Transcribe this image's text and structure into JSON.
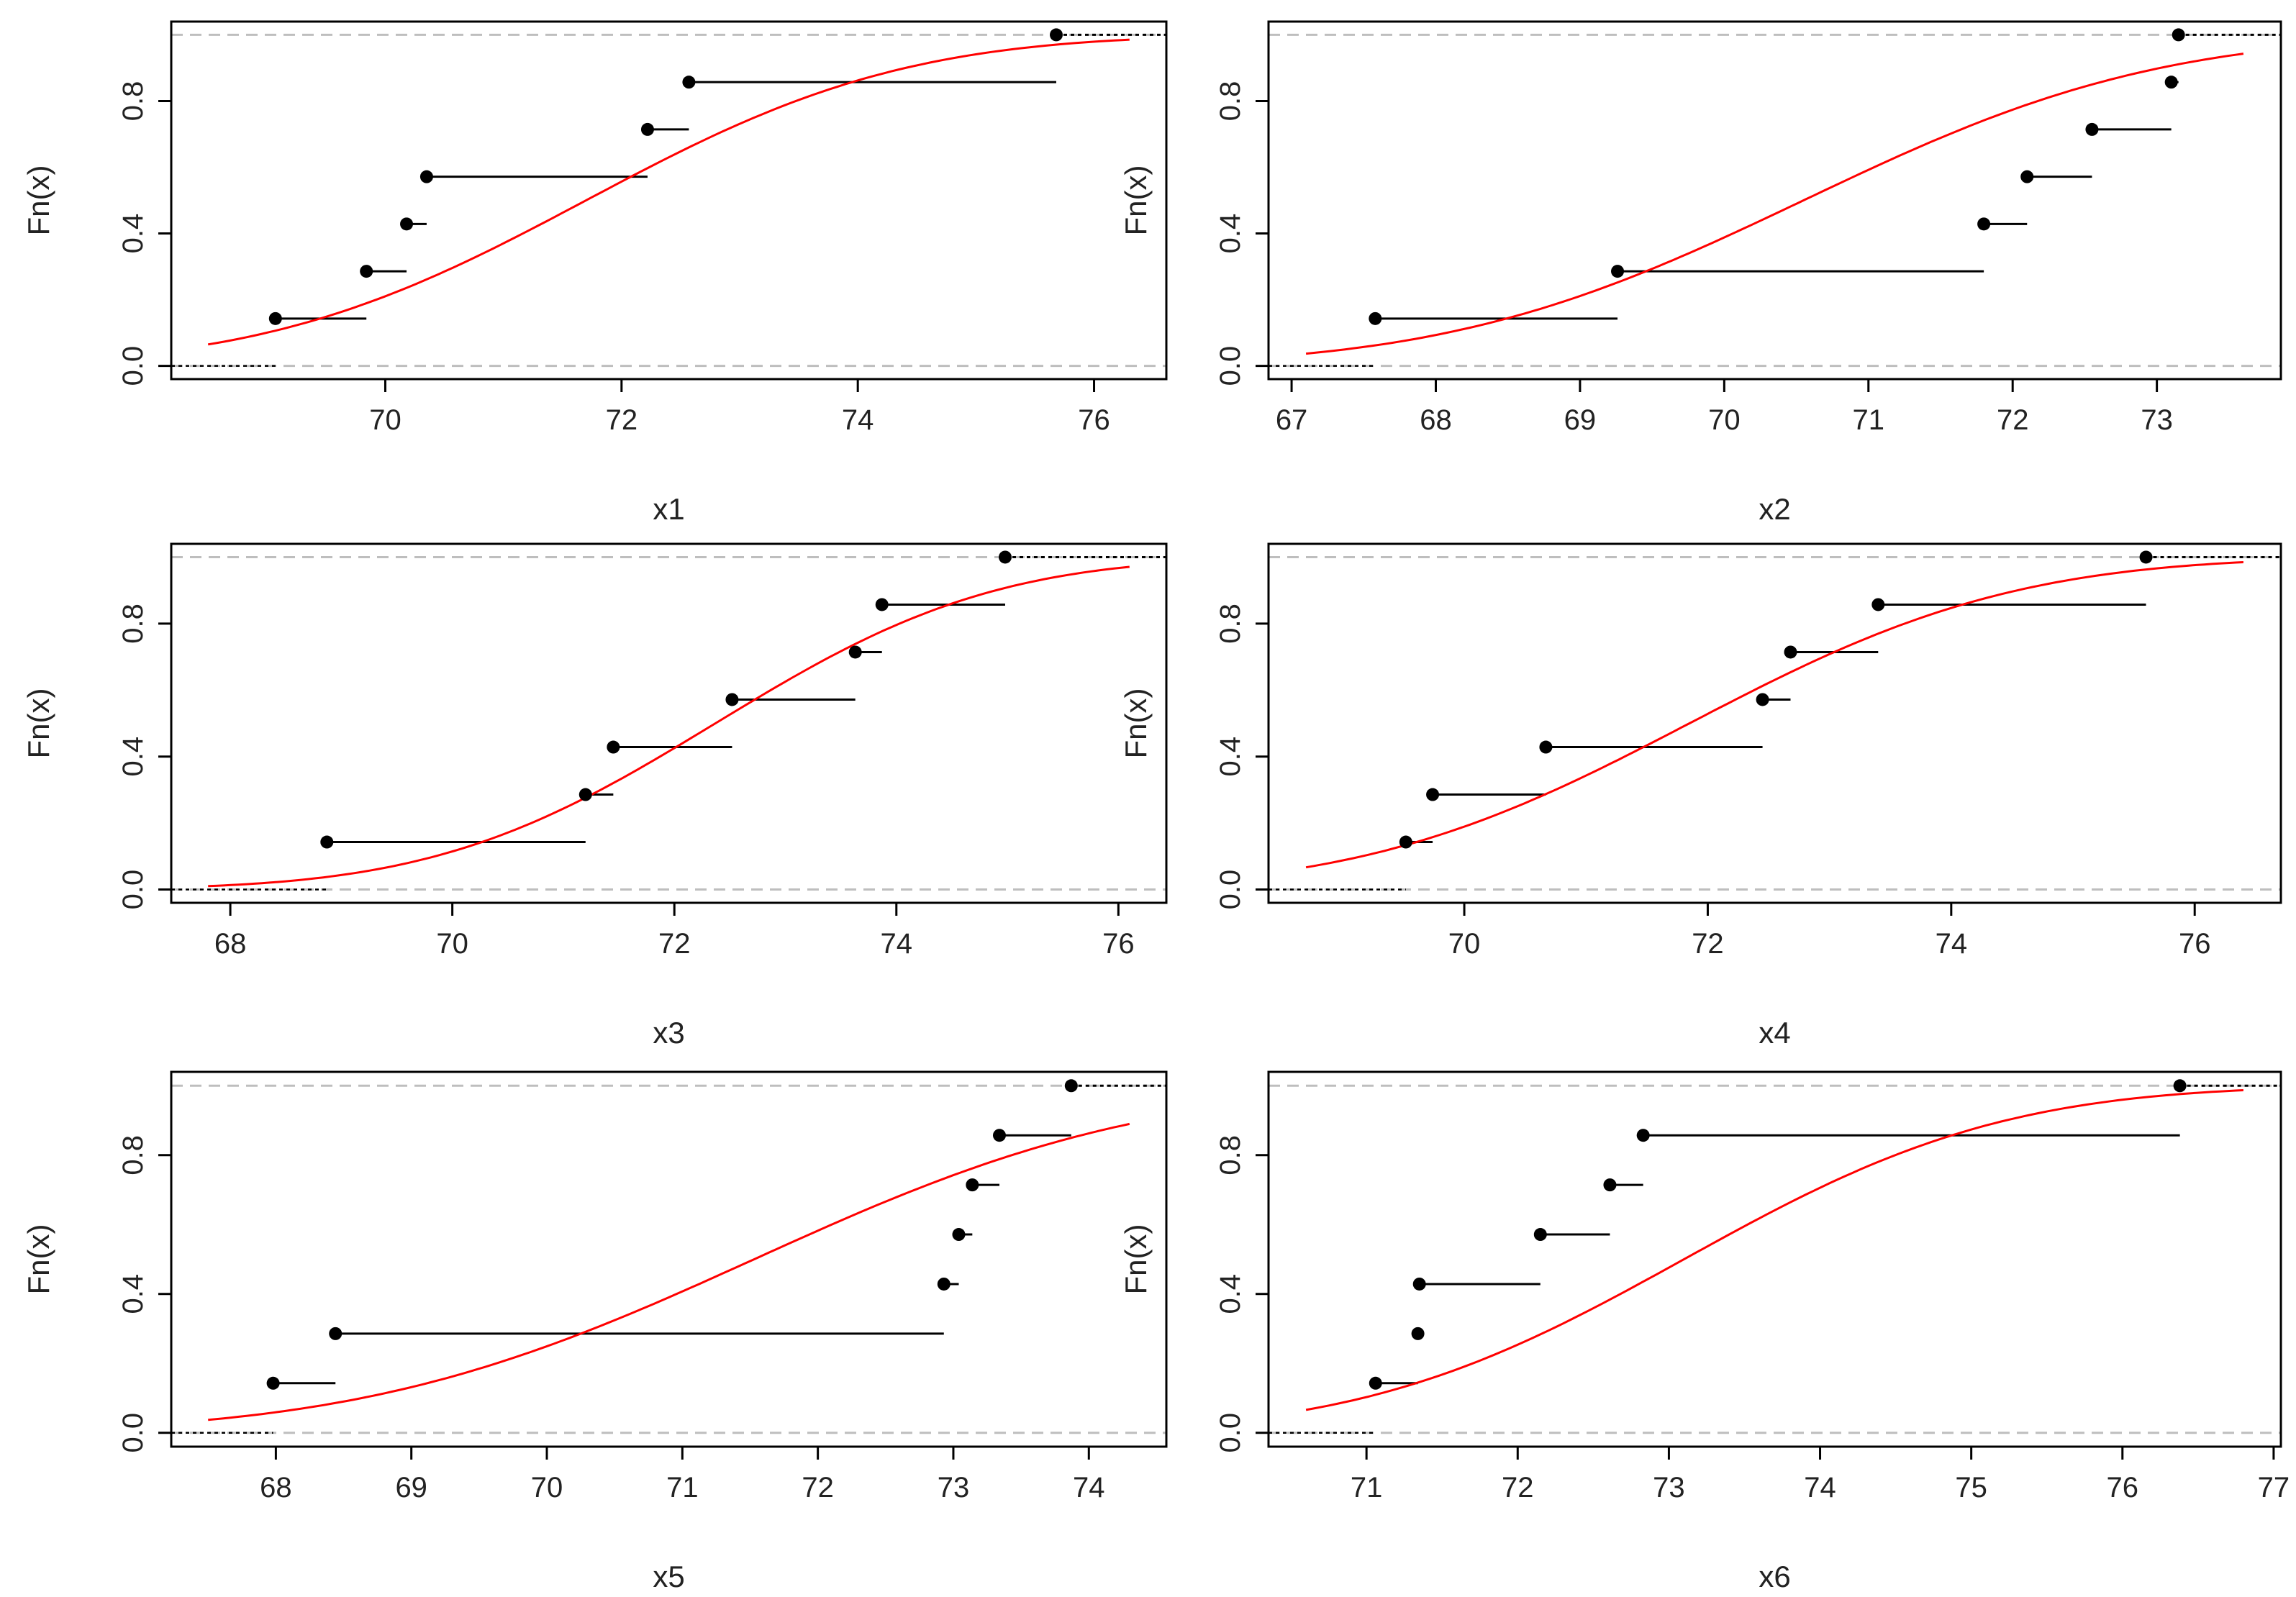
{
  "colors": {
    "background": "#ffffff",
    "frame": "#000000",
    "step": "#000000",
    "fit": "#ff0000",
    "guide": "#bebebe"
  },
  "chart_data": [
    {
      "type": "step",
      "id": "x1",
      "title": "",
      "xlabel": "x1",
      "ylabel": "Fn(x)",
      "xlim": [
        68.5,
        76.3
      ],
      "ylim": [
        0,
        1
      ],
      "xticks": [
        70,
        72,
        74,
        76
      ],
      "yticks": [
        0.0,
        0.4,
        0.8
      ],
      "ytick_labels": [
        "0.0",
        "0.4",
        "0.8"
      ],
      "ecdf_x": [
        69.07,
        69.84,
        70.18,
        70.35,
        72.22,
        72.57,
        75.68
      ],
      "fit_normal": {
        "mean": 71.7,
        "sd": 2.11
      }
    },
    {
      "type": "step",
      "id": "x2",
      "title": "",
      "xlabel": "x2",
      "ylabel": "Fn(x)",
      "xlim": [
        67.1,
        73.6
      ],
      "ylim": [
        0,
        1
      ],
      "xticks": [
        67,
        68,
        69,
        70,
        71,
        72,
        73
      ],
      "yticks": [
        0.0,
        0.4,
        0.8
      ],
      "ytick_labels": [
        "0.0",
        "0.4",
        "0.8"
      ],
      "ecdf_x": [
        67.58,
        69.26,
        71.8,
        72.1,
        72.55,
        73.1,
        73.15
      ],
      "fit_normal": {
        "mean": 70.55,
        "sd": 1.93
      }
    },
    {
      "type": "step",
      "id": "x3",
      "title": "",
      "xlabel": "x3",
      "ylabel": "Fn(x)",
      "xlim": [
        67.8,
        76.1
      ],
      "ylim": [
        0,
        1
      ],
      "xticks": [
        68,
        70,
        72,
        74,
        76
      ],
      "yticks": [
        0.0,
        0.4,
        0.8
      ],
      "ytick_labels": [
        "0.0",
        "0.4",
        "0.8"
      ],
      "ecdf_x": [
        68.87,
        71.2,
        71.45,
        72.52,
        73.63,
        73.87,
        74.98
      ],
      "fit_normal": {
        "mean": 72.37,
        "sd": 1.97
      }
    },
    {
      "type": "step",
      "id": "x4",
      "title": "",
      "xlabel": "x4",
      "ylabel": "Fn(x)",
      "xlim": [
        68.7,
        76.4
      ],
      "ylim": [
        0,
        1
      ],
      "xticks": [
        70,
        72,
        74,
        76
      ],
      "yticks": [
        0.0,
        0.4,
        0.8
      ],
      "ytick_labels": [
        "0.0",
        "0.4",
        "0.8"
      ],
      "ecdf_x": [
        69.52,
        69.74,
        70.67,
        72.45,
        72.68,
        73.4,
        75.6
      ],
      "fit_normal": {
        "mean": 71.85,
        "sd": 2.1
      }
    },
    {
      "type": "step",
      "id": "x5",
      "title": "",
      "xlabel": "x5",
      "ylabel": "Fn(x)",
      "xlim": [
        67.5,
        74.3
      ],
      "ylim": [
        0,
        1
      ],
      "xticks": [
        68,
        69,
        70,
        71,
        72,
        73,
        74
      ],
      "yticks": [
        0.0,
        0.4,
        0.8
      ],
      "ytick_labels": [
        "0.0",
        "0.4",
        "0.8"
      ],
      "ecdf_x": [
        67.98,
        68.44,
        72.93,
        73.04,
        73.14,
        73.34,
        73.87
      ],
      "fit_normal": {
        "mean": 71.53,
        "sd": 2.26
      }
    },
    {
      "type": "step",
      "id": "x6",
      "title": "",
      "xlabel": "x6",
      "ylabel": "Fn(x)",
      "xlim": [
        70.6,
        76.8
      ],
      "ylim": [
        0,
        1
      ],
      "xticks": [
        71,
        72,
        73,
        74,
        75,
        76,
        77
      ],
      "yticks": [
        0.0,
        0.4,
        0.8
      ],
      "ytick_labels": [
        "0.0",
        "0.4",
        "0.8"
      ],
      "ecdf_x": [
        71.06,
        71.34,
        71.35,
        72.15,
        72.61,
        72.83,
        76.38
      ],
      "fit_normal": {
        "mean": 73.1,
        "sd": 1.66
      }
    }
  ]
}
